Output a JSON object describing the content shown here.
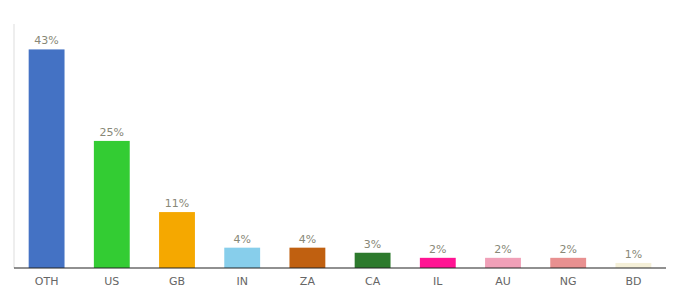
{
  "chart_data": {
    "type": "bar",
    "categories": [
      "OTH",
      "US",
      "GB",
      "IN",
      "ZA",
      "CA",
      "IL",
      "AU",
      "NG",
      "BD"
    ],
    "values": [
      43,
      25,
      11,
      4,
      4,
      3,
      2,
      2,
      2,
      1
    ],
    "value_labels": [
      "43%",
      "25%",
      "11%",
      "4%",
      "4%",
      "3%",
      "2%",
      "2%",
      "2%",
      "1%"
    ],
    "colors": [
      "#4472c4",
      "#33cc33",
      "#f5a800",
      "#87ceeb",
      "#c06010",
      "#2d7a2d",
      "#ff1493",
      "#f0a0b8",
      "#e89090",
      "#f5f0d8"
    ],
    "ylim": [
      0,
      48
    ],
    "data_labels": true,
    "grid": false,
    "tick_labels": "x"
  }
}
